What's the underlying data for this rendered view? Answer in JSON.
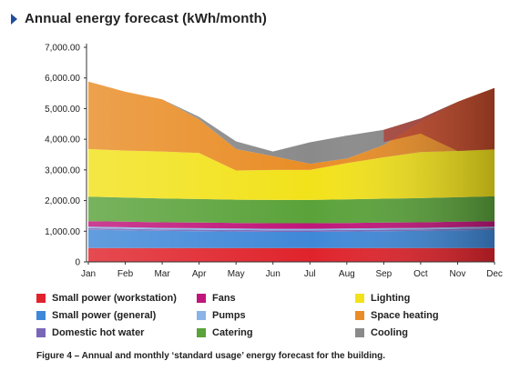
{
  "header": {
    "title": "Annual energy forecast (kWh/month)"
  },
  "caption": "Figure 4 – Annual and monthly ‘standard usage’ energy forecast for the building.",
  "chart_data": {
    "type": "area",
    "stacked": true,
    "title": "Annual energy forecast (kWh/month)",
    "x": [
      "Jan",
      "Feb",
      "Mar",
      "Apr",
      "May",
      "Jun",
      "Jul",
      "Aug",
      "Sep",
      "Oct",
      "Nov",
      "Dec"
    ],
    "ylim": [
      0,
      7000
    ],
    "yticks": [
      "0",
      "1,000.00",
      "2,000.00",
      "3,000.00",
      "4,000.00",
      "5,000.00",
      "6,000.00",
      "7,000.00"
    ],
    "grid": false,
    "legend_position": "bottom",
    "series": [
      {
        "name": "Small power (workstation)",
        "color": "#e0232b",
        "values": [
          450,
          450,
          450,
          450,
          450,
          450,
          450,
          450,
          450,
          450,
          450,
          450
        ]
      },
      {
        "name": "Small power (general)",
        "color": "#3f88d8",
        "values": [
          600,
          580,
          560,
          550,
          540,
          530,
          530,
          540,
          550,
          560,
          580,
          600
        ]
      },
      {
        "name": "Domestic hot water",
        "color": "#7a66b8",
        "values": [
          50,
          50,
          50,
          50,
          50,
          50,
          50,
          50,
          50,
          50,
          50,
          50
        ]
      },
      {
        "name": "Pumps",
        "color": "#8ab3e6",
        "values": [
          50,
          50,
          50,
          50,
          50,
          50,
          50,
          50,
          50,
          50,
          50,
          50
        ]
      },
      {
        "name": "Fans",
        "color": "#c0157a",
        "values": [
          180,
          180,
          180,
          180,
          180,
          180,
          180,
          180,
          180,
          180,
          180,
          180
        ]
      },
      {
        "name": "Catering",
        "color": "#5aa23a",
        "values": [
          800,
          790,
          780,
          770,
          760,
          760,
          760,
          770,
          780,
          790,
          800,
          810
        ]
      },
      {
        "name": "Lighting",
        "color": "#f2e21b",
        "values": [
          1550,
          1530,
          1530,
          1500,
          950,
          980,
          980,
          1180,
          1350,
          1500,
          1510,
          1530
        ]
      },
      {
        "name": "Space heating",
        "color": "#e98d26",
        "values": [
          2200,
          1920,
          1700,
          1100,
          700,
          450,
          200,
          150,
          400,
          1000,
          1600,
          2000
        ]
      },
      {
        "name": "Cooling",
        "color": "#8a8a8a",
        "values": [
          0,
          0,
          0,
          80,
          250,
          150,
          700,
          750,
          500,
          100,
          0,
          0
        ]
      }
    ],
    "red_band_color": "#b3342a"
  },
  "legend": {
    "col1": [
      {
        "label": "Small power (workstation)",
        "color": "#e0232b"
      },
      {
        "label": "Small power (general)",
        "color": "#3f88d8"
      },
      {
        "label": "Domestic hot water",
        "color": "#7a66b8"
      }
    ],
    "col2": [
      {
        "label": "Fans",
        "color": "#c0157a"
      },
      {
        "label": "Pumps",
        "color": "#8ab3e6"
      },
      {
        "label": "Catering",
        "color": "#5aa23a"
      }
    ],
    "col3": [
      {
        "label": "Lighting",
        "color": "#f2e21b"
      },
      {
        "label": "Space heating",
        "color": "#e98d26"
      },
      {
        "label": "Cooling",
        "color": "#8a8a8a"
      }
    ]
  }
}
